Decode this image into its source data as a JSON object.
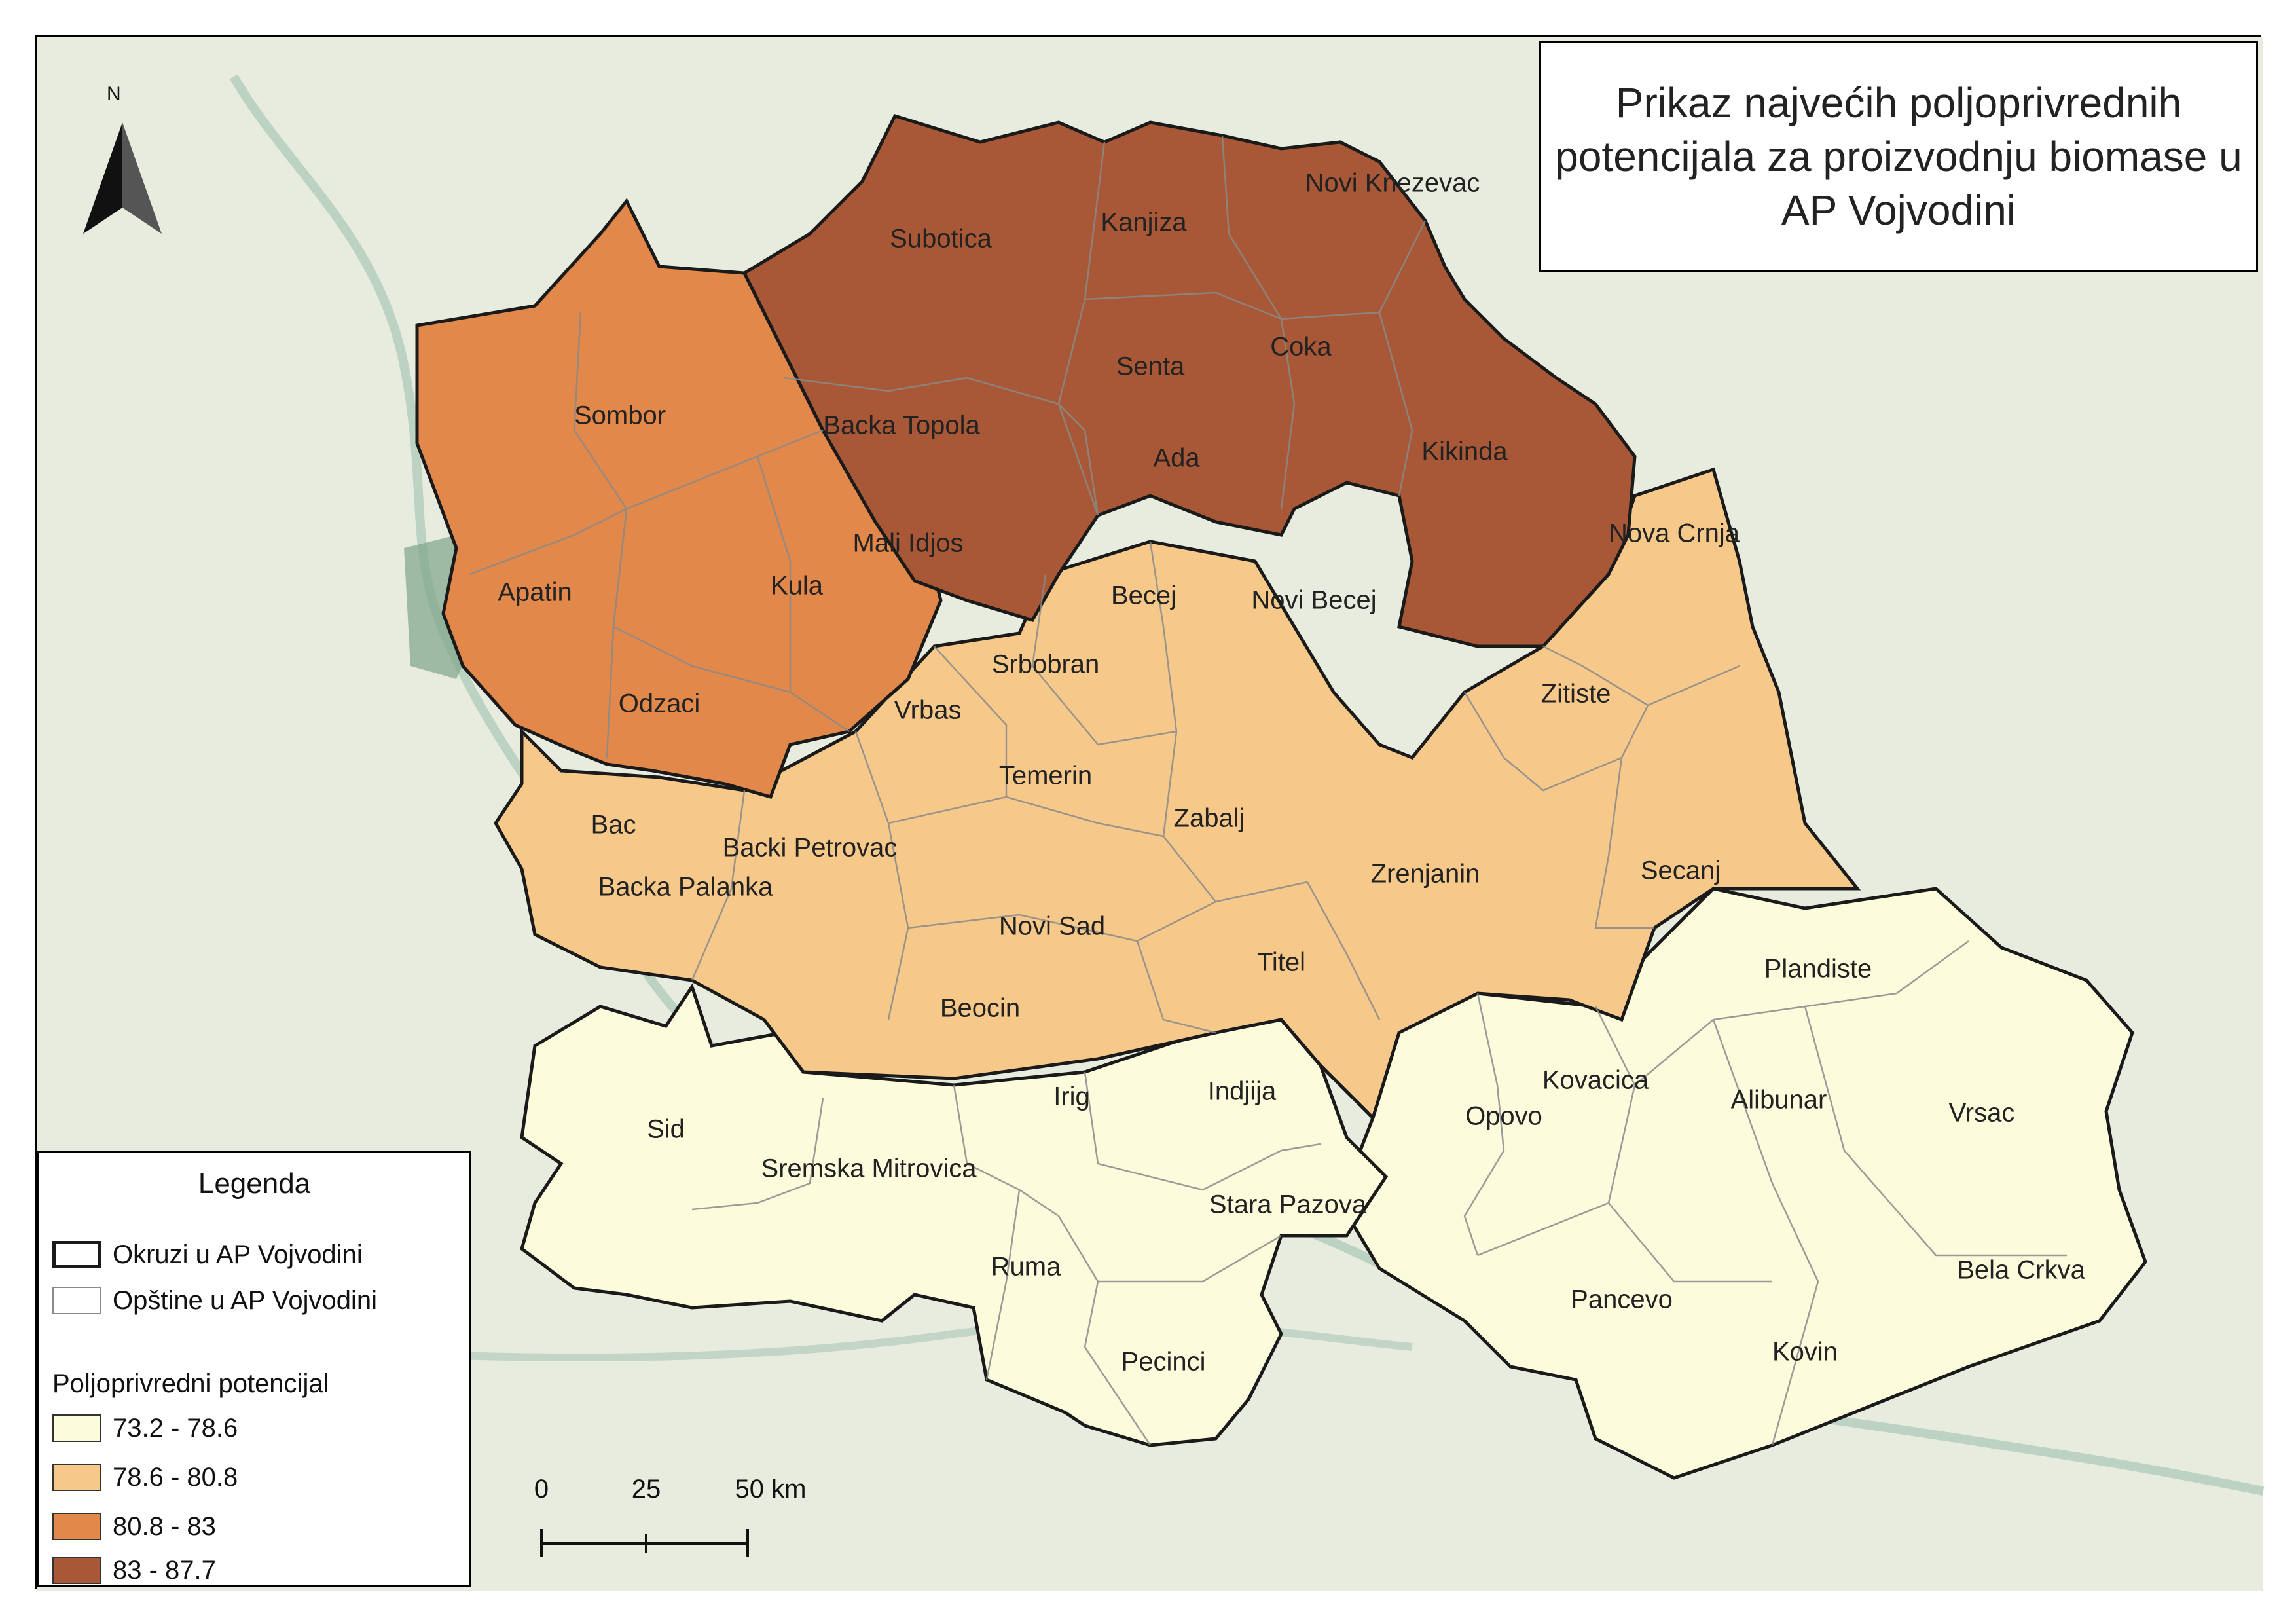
{
  "title": "Prikaz najvećih poljoprivrednih potencijala za proizvodnju biomase u AP Vojvodini",
  "north_label": "N",
  "legend": {
    "title": "Legenda",
    "districts_label": "Okruzi u AP Vojvodini",
    "municipalities_label": "Opštine u AP Vojvodini",
    "subtitle": "Poljoprivredni potencijal",
    "classes": [
      {
        "label": "73.2 - 78.6",
        "color": "#fcfbdc"
      },
      {
        "label": "78.6 - 80.8",
        "color": "#f6c98a"
      },
      {
        "label": "80.8 - 83",
        "color": "#e1884a"
      },
      {
        "label": "83 - 87.7",
        "color": "#a85836"
      }
    ]
  },
  "scalebar": {
    "labels": [
      "0",
      "25",
      "50 km"
    ]
  },
  "colors": {
    "background": "#e8ecdf",
    "district_border": "#1a1a1a",
    "municipality_border": "#8a8a8a",
    "water": "#a9c7b7"
  },
  "municipalities": [
    {
      "name": "Subotica",
      "class": 3
    },
    {
      "name": "Kanjiza",
      "class": 3
    },
    {
      "name": "Novi Knezevac",
      "class": 3
    },
    {
      "name": "Senta",
      "class": 3
    },
    {
      "name": "Coka",
      "class": 3
    },
    {
      "name": "Backa Topola",
      "class": 3
    },
    {
      "name": "Ada",
      "class": 3
    },
    {
      "name": "Kikinda",
      "class": 3
    },
    {
      "name": "Mali Idjos",
      "class": 3
    },
    {
      "name": "Sombor",
      "class": 2
    },
    {
      "name": "Apatin",
      "class": 2
    },
    {
      "name": "Kula",
      "class": 2
    },
    {
      "name": "Odzaci",
      "class": 2
    },
    {
      "name": "Nova Crnja",
      "class": 1
    },
    {
      "name": "Becej",
      "class": 1
    },
    {
      "name": "Novi Becej",
      "class": 1
    },
    {
      "name": "Srbobran",
      "class": 1
    },
    {
      "name": "Vrbas",
      "class": 1
    },
    {
      "name": "Zitiste",
      "class": 1
    },
    {
      "name": "Temerin",
      "class": 1
    },
    {
      "name": "Bac",
      "class": 1
    },
    {
      "name": "Zabalj",
      "class": 1
    },
    {
      "name": "Backi Petrovac",
      "class": 1
    },
    {
      "name": "Zrenjanin",
      "class": 1
    },
    {
      "name": "Secanj",
      "class": 1
    },
    {
      "name": "Backa Palanka",
      "class": 1
    },
    {
      "name": "Novi Sad",
      "class": 1
    },
    {
      "name": "Titel",
      "class": 1
    },
    {
      "name": "Beocin",
      "class": 1
    },
    {
      "name": "Plandiste",
      "class": 0
    },
    {
      "name": "Irig",
      "class": 0
    },
    {
      "name": "Indjija",
      "class": 0
    },
    {
      "name": "Kovacica",
      "class": 0
    },
    {
      "name": "Alibunar",
      "class": 0
    },
    {
      "name": "Sid",
      "class": 0
    },
    {
      "name": "Opovo",
      "class": 0
    },
    {
      "name": "Vrsac",
      "class": 0
    },
    {
      "name": "Sremska Mitrovica",
      "class": 0
    },
    {
      "name": "Stara Pazova",
      "class": 0
    },
    {
      "name": "Ruma",
      "class": 0
    },
    {
      "name": "Bela Crkva",
      "class": 0
    },
    {
      "name": "Pancevo",
      "class": 0
    },
    {
      "name": "Kovin",
      "class": 0
    },
    {
      "name": "Pecinci",
      "class": 0
    }
  ]
}
